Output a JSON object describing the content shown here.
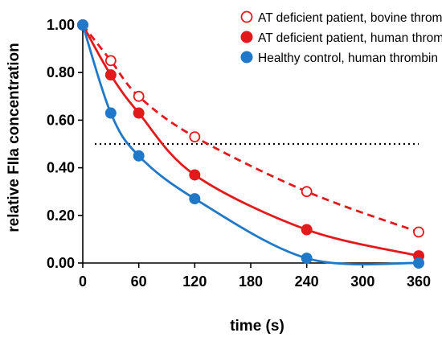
{
  "chart_data": {
    "type": "scatter",
    "xlabel": "time (s)",
    "ylabel": "relative FIIa concentration",
    "xlim": [
      0,
      360
    ],
    "ylim": [
      0,
      1
    ],
    "xticks": [
      0,
      60,
      120,
      180,
      240,
      300,
      360
    ],
    "xtick_labels": [
      "0",
      "60",
      "120",
      "180",
      "240",
      "300",
      "360"
    ],
    "yticks": [
      0,
      0.2,
      0.4,
      0.6,
      0.8,
      1.0
    ],
    "ytick_labels": [
      "0.00",
      "0.20",
      "0.40",
      "0.60",
      "0.80",
      "1.00"
    ],
    "grid": false,
    "legend_position": "top-right",
    "reference_line": {
      "y": 0.5,
      "style": "dotted",
      "color": "#000000"
    },
    "series": [
      {
        "name": "AT deficient patient, bovine thrombin",
        "color": "#e31a1c",
        "marker": "open-circle",
        "line": "dashed",
        "x": [
          0,
          30,
          60,
          120,
          240,
          360
        ],
        "y": [
          1.0,
          0.85,
          0.7,
          0.53,
          0.3,
          0.13
        ]
      },
      {
        "name": "AT deficient patient, human thrombin",
        "color": "#e31a1c",
        "marker": "filled-circle",
        "line": "solid",
        "x": [
          0,
          30,
          60,
          120,
          240,
          360
        ],
        "y": [
          1.0,
          0.79,
          0.63,
          0.37,
          0.14,
          0.03
        ]
      },
      {
        "name": "Healthy control, human thrombin",
        "color": "#1f78c8",
        "marker": "filled-circle",
        "line": "solid",
        "x": [
          0,
          30,
          60,
          120,
          240,
          360
        ],
        "y": [
          1.0,
          0.63,
          0.45,
          0.27,
          0.02,
          0.0
        ]
      }
    ]
  }
}
